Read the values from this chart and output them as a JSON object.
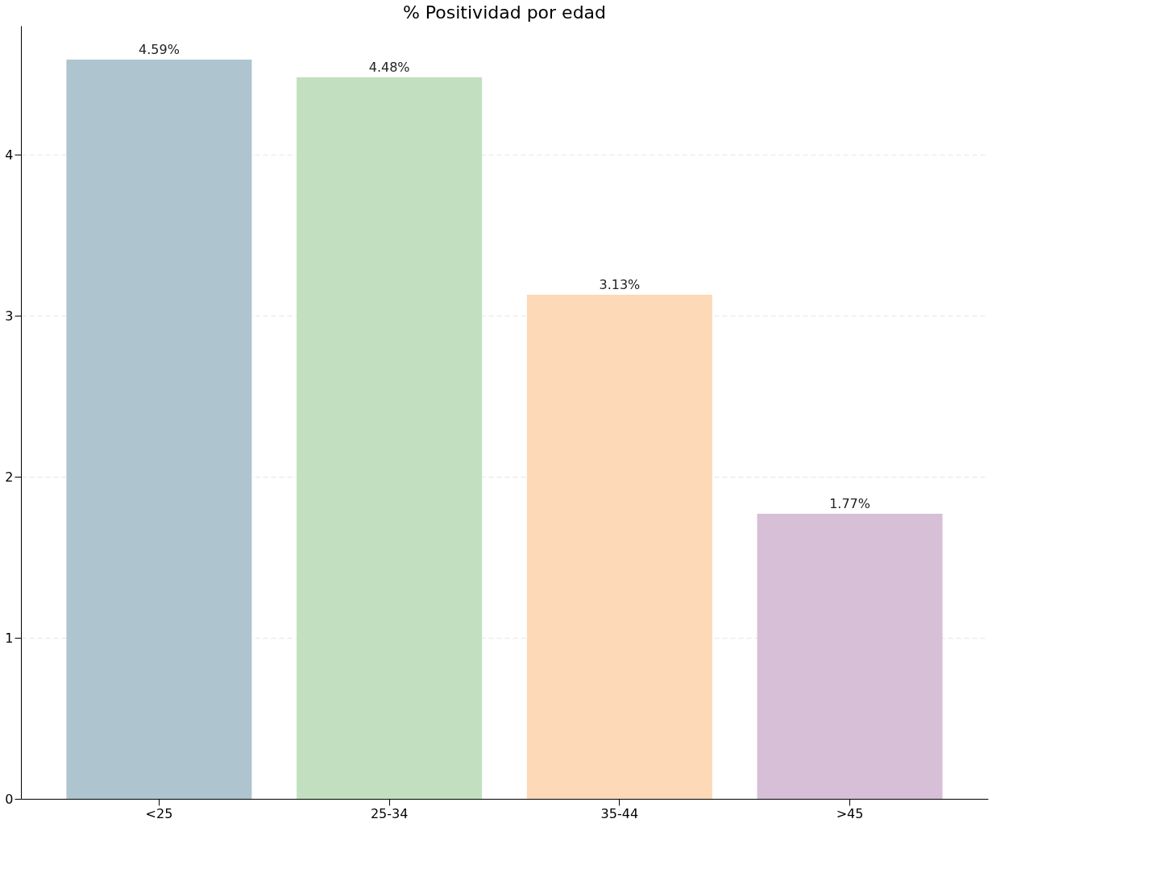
{
  "chart_data": {
    "type": "bar",
    "title": "% Positividad por edad",
    "categories": [
      "<25",
      "25-34",
      "35-44",
      ">45"
    ],
    "values": [
      4.59,
      4.48,
      3.13,
      1.77
    ],
    "colors": [
      "#aec5cf",
      "#c2e0c0",
      "#fdd9b8",
      "#d7bfd7"
    ],
    "value_labels": [
      "4.59%",
      "4.48%",
      "3.13%",
      "1.77%"
    ],
    "ylim": [
      0,
      4.8
    ],
    "yticks": [
      0,
      1,
      2,
      3,
      4
    ],
    "grid": "y"
  }
}
